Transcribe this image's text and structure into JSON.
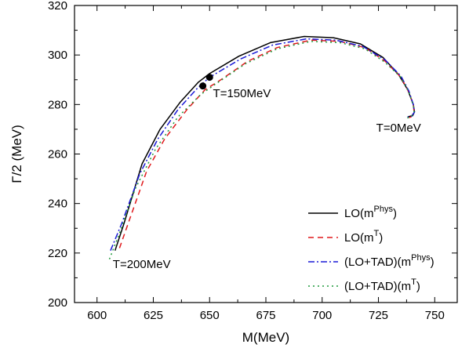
{
  "chart_data": {
    "type": "line",
    "xlabel": "M(MeV)",
    "ylabel": "Γ/2 (MeV)",
    "xlim": [
      590,
      760
    ],
    "ylim": [
      200,
      320
    ],
    "xticks": [
      "600",
      "625",
      "650",
      "675",
      "700",
      "725",
      "750"
    ],
    "yticks": [
      "200",
      "220",
      "240",
      "260",
      "280",
      "300",
      "320"
    ],
    "legend_position": "bottom-right",
    "series": [
      {
        "name": "LO(m^Phys)",
        "legend": {
          "base": "LO(m",
          "sup": "Phys",
          "tail": ")"
        },
        "color": "#000000",
        "dash": "",
        "x": [
          608,
          612,
          620,
          628,
          637,
          645,
          650,
          663,
          677,
          692,
          705,
          717,
          727,
          734,
          738,
          740.5,
          741,
          740.2,
          738
        ],
        "y": [
          221,
          232,
          256,
          270,
          281,
          289,
          292.5,
          299.5,
          305,
          307.5,
          307,
          304.5,
          299,
          292,
          286,
          280,
          277,
          275.5,
          275
        ]
      },
      {
        "name": "LO(m^T)",
        "legend": {
          "base": "LO(m",
          "sup": "T",
          "tail": ")"
        },
        "color": "#e0191c",
        "dash": "7,5",
        "x": [
          610,
          615,
          622,
          630,
          640,
          648,
          655,
          667,
          680,
          695,
          708,
          719,
          728,
          735,
          738.5,
          740.5,
          740.8,
          739.5,
          738
        ],
        "y": [
          222,
          235,
          253,
          266,
          278,
          286,
          290,
          297.5,
          303,
          306,
          305.5,
          303,
          297.5,
          291,
          285,
          280,
          277,
          275,
          274.5
        ]
      },
      {
        "name": "(LO+TAD)(m^Phys)",
        "legend": {
          "base": "(LO+TAD)(m",
          "sup": "Phys",
          "tail": ")"
        },
        "color": "#1a1ad6",
        "dash": "8,3,2,3",
        "x": [
          606,
          611,
          619,
          627,
          636,
          645,
          650,
          664,
          678,
          693,
          706,
          718,
          728,
          735,
          738.5,
          740.5,
          741,
          739.8,
          738
        ],
        "y": [
          221,
          232,
          252,
          266,
          278,
          287,
          291,
          298.5,
          304,
          306.5,
          306,
          303.5,
          298,
          291.5,
          285.5,
          280,
          277,
          275.3,
          275
        ]
      },
      {
        "name": "(LO+TAD)(m^T)",
        "legend": {
          "base": "(LO+TAD)(m",
          "sup": "T",
          "tail": ")"
        },
        "color": "#1f9a3c",
        "dash": "2,4",
        "x": [
          605.5,
          610,
          617,
          626,
          636,
          646,
          653,
          666,
          680,
          695,
          708,
          719,
          728,
          735,
          738.5,
          740.5,
          740.8,
          739.5,
          737.5
        ],
        "y": [
          217.5,
          228,
          246,
          262,
          275,
          284,
          288.5,
          296.5,
          302.5,
          305.5,
          305,
          302.5,
          297,
          291,
          285,
          279.5,
          277,
          275,
          274.5
        ]
      }
    ],
    "markers": [
      {
        "x": 650,
        "y": 291
      },
      {
        "x": 647,
        "y": 287.5
      }
    ],
    "annotations": [
      {
        "text": "T=150MeV",
        "x": 651.5,
        "y": 283
      },
      {
        "text": "T=0MeV",
        "x": 724,
        "y": 269
      },
      {
        "text": "T=200MeV",
        "x": 607,
        "y": 214
      }
    ]
  }
}
